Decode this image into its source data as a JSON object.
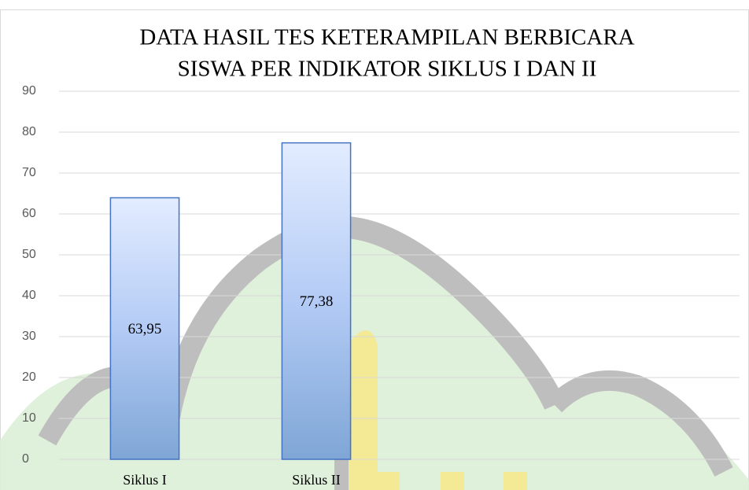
{
  "chart_data": {
    "type": "bar",
    "title": [
      "DATA HASIL TES KETERAMPILAN BERBICARA",
      "SISWA PER INDIKATOR SIKLUS I DAN II"
    ],
    "categories": [
      "Siklus I",
      "Siklus II",
      null,
      null
    ],
    "values": [
      63.95,
      77.38,
      null,
      null
    ],
    "value_labels": [
      "63,95",
      "77,38",
      null,
      null
    ],
    "color": "#4472c4",
    "ylim": [
      0,
      90
    ],
    "yticks": [
      0,
      10,
      20,
      30,
      40,
      50,
      60,
      70,
      80,
      90
    ],
    "grid": true
  }
}
